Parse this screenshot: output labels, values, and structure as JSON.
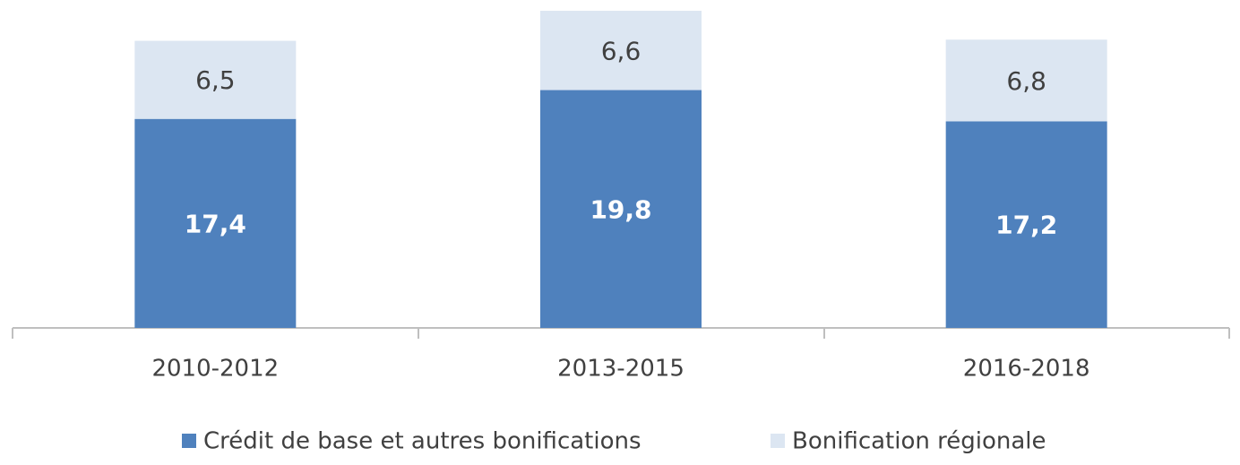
{
  "chart_data": {
    "type": "stacked_bar",
    "categories": [
      "2010-2012",
      "2013-2015",
      "2016-2018"
    ],
    "series": [
      {
        "name": "Crédit de base et autres bonifications",
        "color": "#4f81bd",
        "values": [
          17.4,
          19.8,
          17.2
        ],
        "value_labels": [
          "17,4",
          "19,8",
          "17,2"
        ]
      },
      {
        "name": "Bonification régionale",
        "color": "#dce6f2",
        "values": [
          6.5,
          6.6,
          6.8
        ],
        "value_labels": [
          "6,5",
          "6,6",
          "6,8"
        ]
      }
    ],
    "ylim": [
      0,
      27
    ]
  }
}
